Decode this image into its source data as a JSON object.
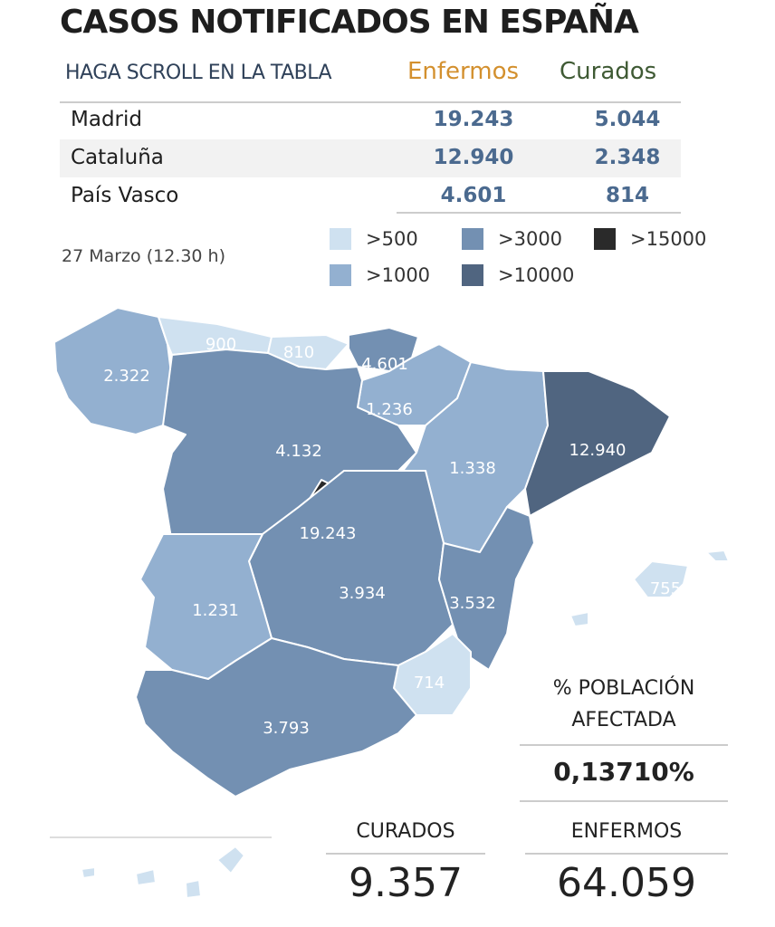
{
  "title": "CASOS NOTIFICADOS EN ESPAÑA",
  "table": {
    "header_scroll": "HAGA SCROLL EN LA TABLA",
    "header_enfermos": "Enfermos",
    "header_curados": "Curados",
    "rows": [
      {
        "name": "Madrid",
        "enfermos": "19.243",
        "curados": "5.044"
      },
      {
        "name": "Cataluña",
        "enfermos": "12.940",
        "curados": "2.348"
      },
      {
        "name": "País Vasco",
        "enfermos": "4.601",
        "curados": "814"
      }
    ]
  },
  "date": "27 Marzo (12.30 h)",
  "legend": [
    {
      "label": ">500",
      "color": "#cfe1f0"
    },
    {
      "label": ">1000",
      "color": "#93b0d0"
    },
    {
      "label": ">3000",
      "color": "#7390b2"
    },
    {
      "label": ">10000",
      "color": "#506580"
    },
    {
      "label": ">15000",
      "color": "#2a2a2a"
    }
  ],
  "map": {
    "regions": [
      {
        "name": "Galicia",
        "value": "2.322",
        "level": 1
      },
      {
        "name": "Asturias",
        "value": "900",
        "level": 0
      },
      {
        "name": "Cantabria",
        "value": "810",
        "level": 0
      },
      {
        "name": "País Vasco",
        "value": "4.601",
        "level": 2
      },
      {
        "name": "Navarra / La Rioja",
        "value": "1.236",
        "level": 1
      },
      {
        "name": "Castilla y León",
        "value": "4.132",
        "level": 2
      },
      {
        "name": "Aragón",
        "value": "1.338",
        "level": 1
      },
      {
        "name": "Cataluña",
        "value": "12.940",
        "level": 3
      },
      {
        "name": "Madrid",
        "value": "19.243",
        "level": 4
      },
      {
        "name": "Castilla-La Mancha",
        "value": "3.934",
        "level": 2
      },
      {
        "name": "Comunidad Valenciana",
        "value": "3.532",
        "level": 2
      },
      {
        "name": "Extremadura",
        "value": "1.231",
        "level": 1
      },
      {
        "name": "Murcia",
        "value": "714",
        "level": 0
      },
      {
        "name": "Andalucía",
        "value": "3.793",
        "level": 2
      },
      {
        "name": "Baleares",
        "value": "755",
        "level": 0
      },
      {
        "name": "Canarias",
        "value": "",
        "level": 0
      }
    ]
  },
  "stats": {
    "poblacion_label_1": "% POBLACIÓN",
    "poblacion_label_2": "AFECTADA",
    "poblacion_value": "0,13710%",
    "curados_label": "CURADOS",
    "curados_value": "9.357",
    "enfermos_label": "ENFERMOS",
    "enfermos_value": "64.059"
  }
}
